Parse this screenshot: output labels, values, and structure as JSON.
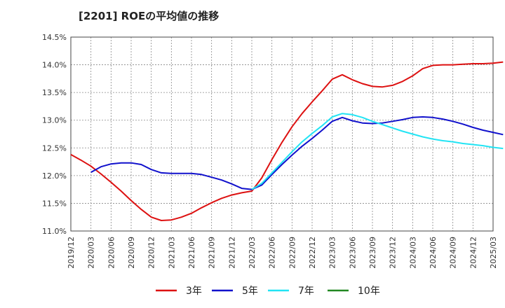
{
  "chart_data": {
    "type": "line",
    "title": "[2201]  ROEの平均値の推移",
    "xlabel": "",
    "ylabel": "",
    "ylim": [
      11.0,
      14.5
    ],
    "yticks": [
      11.0,
      11.5,
      12.0,
      12.5,
      13.0,
      13.5,
      14.0,
      14.5
    ],
    "ytick_labels": [
      "11.0%",
      "11.5%",
      "12.0%",
      "12.5%",
      "13.0%",
      "13.5%",
      "14.0%",
      "14.5%"
    ],
    "x_tick_labels": [
      "2019/12",
      "2020/03",
      "2020/06",
      "2020/09",
      "2020/12",
      "2021/03",
      "2021/06",
      "2021/09",
      "2021/12",
      "2022/03",
      "2022/06",
      "2022/09",
      "2022/12",
      "2023/03",
      "2023/06",
      "2023/09",
      "2023/12",
      "2024/03",
      "2024/06",
      "2024/09",
      "2024/12",
      "2025/03"
    ],
    "grid": true,
    "legend_position": "bottom",
    "series": [
      {
        "name": "3年",
        "color": "#dd1111",
        "points": [
          [
            0,
            12.38
          ],
          [
            1,
            12.28
          ],
          [
            2,
            12.17
          ],
          [
            3,
            12.03
          ],
          [
            4,
            11.88
          ],
          [
            5,
            11.72
          ],
          [
            6,
            11.55
          ],
          [
            7,
            11.39
          ],
          [
            8,
            11.25
          ],
          [
            9,
            11.19
          ],
          [
            10,
            11.2
          ],
          [
            11,
            11.25
          ],
          [
            12,
            11.32
          ],
          [
            13,
            11.42
          ],
          [
            14,
            11.51
          ],
          [
            15,
            11.59
          ],
          [
            16,
            11.65
          ],
          [
            17,
            11.69
          ],
          [
            18,
            11.72
          ],
          [
            19,
            11.96
          ],
          [
            20,
            12.29
          ],
          [
            21,
            12.6
          ],
          [
            22,
            12.88
          ],
          [
            23,
            13.12
          ],
          [
            24,
            13.33
          ],
          [
            25,
            13.53
          ],
          [
            26,
            13.74
          ],
          [
            27,
            13.82
          ],
          [
            28,
            13.73
          ],
          [
            29,
            13.66
          ],
          [
            30,
            13.61
          ],
          [
            31,
            13.6
          ],
          [
            32,
            13.63
          ],
          [
            33,
            13.7
          ],
          [
            34,
            13.8
          ],
          [
            35,
            13.93
          ],
          [
            36,
            13.99
          ],
          [
            37,
            14.0
          ],
          [
            38,
            14.0
          ],
          [
            39,
            14.01
          ],
          [
            40,
            14.02
          ],
          [
            41,
            14.02
          ],
          [
            42,
            14.03
          ],
          [
            43,
            14.05
          ]
        ]
      },
      {
        "name": "5年",
        "color": "#1111cc",
        "points": [
          [
            2,
            12.06
          ],
          [
            3,
            12.16
          ],
          [
            4,
            12.21
          ],
          [
            5,
            12.23
          ],
          [
            6,
            12.23
          ],
          [
            7,
            12.2
          ],
          [
            8,
            12.11
          ],
          [
            9,
            12.05
          ],
          [
            10,
            12.04
          ],
          [
            11,
            12.04
          ],
          [
            12,
            12.04
          ],
          [
            13,
            12.02
          ],
          [
            14,
            11.97
          ],
          [
            15,
            11.92
          ],
          [
            16,
            11.85
          ],
          [
            17,
            11.77
          ],
          [
            18,
            11.75
          ],
          [
            19,
            11.83
          ],
          [
            20,
            12.02
          ],
          [
            21,
            12.2
          ],
          [
            22,
            12.37
          ],
          [
            23,
            12.53
          ],
          [
            24,
            12.67
          ],
          [
            25,
            12.82
          ],
          [
            26,
            12.98
          ],
          [
            27,
            13.05
          ],
          [
            28,
            12.99
          ],
          [
            29,
            12.95
          ],
          [
            30,
            12.94
          ],
          [
            31,
            12.95
          ],
          [
            32,
            12.98
          ],
          [
            33,
            13.01
          ],
          [
            34,
            13.05
          ],
          [
            35,
            13.06
          ],
          [
            36,
            13.05
          ],
          [
            37,
            13.02
          ],
          [
            38,
            12.98
          ],
          [
            39,
            12.93
          ],
          [
            40,
            12.87
          ],
          [
            41,
            12.82
          ],
          [
            42,
            12.78
          ],
          [
            43,
            12.74
          ]
        ]
      },
      {
        "name": "7年",
        "color": "#22e4f4",
        "points": [
          [
            18,
            11.75
          ],
          [
            19,
            11.86
          ],
          [
            20,
            12.05
          ],
          [
            21,
            12.24
          ],
          [
            22,
            12.43
          ],
          [
            23,
            12.61
          ],
          [
            24,
            12.76
          ],
          [
            25,
            12.9
          ],
          [
            26,
            13.06
          ],
          [
            27,
            13.12
          ],
          [
            28,
            13.1
          ],
          [
            29,
            13.05
          ],
          [
            30,
            12.98
          ],
          [
            31,
            12.92
          ],
          [
            32,
            12.86
          ],
          [
            33,
            12.8
          ],
          [
            34,
            12.75
          ],
          [
            35,
            12.7
          ],
          [
            36,
            12.66
          ],
          [
            37,
            12.63
          ],
          [
            38,
            12.61
          ],
          [
            39,
            12.58
          ],
          [
            40,
            12.56
          ],
          [
            41,
            12.54
          ],
          [
            42,
            12.51
          ],
          [
            43,
            12.49
          ]
        ]
      },
      {
        "name": "10年",
        "color": "#228822",
        "points": []
      }
    ]
  }
}
